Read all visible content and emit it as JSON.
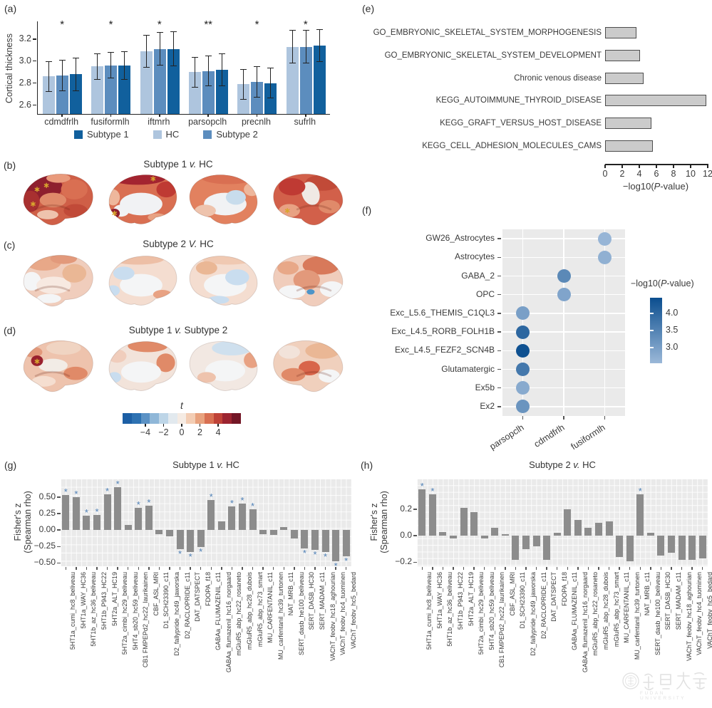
{
  "figure": {
    "panel_labels": {
      "a": "(a)",
      "b": "(b)",
      "c": "(c)",
      "d": "(d)",
      "e": "(e)",
      "f": "(f)",
      "g": "(g)",
      "h": "(h)"
    }
  },
  "panels": {
    "b": {
      "title_pre": "Subtype 1 ",
      "title_vs": "v.",
      "title_post": " HC",
      "palette": [
        "#8e1f2e",
        "#bf3a33",
        "#d96f52",
        "#e8a283",
        "#f1f2f4",
        "#c8dcec"
      ]
    },
    "c": {
      "title_pre": "Subtype 2 ",
      "title_vs": "V.",
      "title_post": " HC",
      "palette": [
        "#e2997b",
        "#f0cdbc",
        "#f4f5f6",
        "#c9ddef",
        "#d8795a"
      ]
    },
    "d": {
      "title_pre": "Subtype 1 ",
      "title_vs": "v.",
      "title_post": " Subtype 2",
      "palette": [
        "#99212e",
        "#e08a68",
        "#f0d0bd",
        "#f4f5f6",
        "#cfe0ee"
      ]
    },
    "t_colorbar": {
      "label": "t",
      "ticks": [
        -4,
        -2,
        0,
        2,
        4
      ],
      "range": [
        -6.5,
        6.5
      ],
      "segments": [
        "#1c5fa5",
        "#2e72b2",
        "#5b92c5",
        "#8fb7d8",
        "#bdd5e7",
        "#e2e9ee",
        "#f5ebe3",
        "#f3cdb4",
        "#e8a27e",
        "#d87052",
        "#bf4237",
        "#9c2430",
        "#731626"
      ]
    },
    "star_color_brain": "#d9a62e"
  },
  "watermark": {
    "seal_chinese": "復旦大學",
    "seal_english": "FUDAN UNIVERSITY"
  },
  "chart_data": [
    {
      "id": "a",
      "type": "bar",
      "ylabel": "Cortical thickness",
      "categories": [
        "cdmdfrlh",
        "fusiformlh",
        "iftmrh",
        "parsopclh",
        "precnlh",
        "sufrlh"
      ],
      "series": [
        {
          "name": "HC",
          "color": "#aec5de",
          "values": [
            2.86,
            2.95,
            3.09,
            2.9,
            2.79,
            3.13
          ],
          "errors": [
            0.14,
            0.12,
            0.15,
            0.14,
            0.14,
            0.15
          ]
        },
        {
          "name": "Subtype 2",
          "color": "#5c8dbe",
          "values": [
            2.87,
            2.96,
            3.11,
            2.91,
            2.81,
            3.13
          ],
          "errors": [
            0.14,
            0.12,
            0.15,
            0.14,
            0.14,
            0.15
          ]
        },
        {
          "name": "Subtype 1",
          "color": "#11609d",
          "values": [
            2.88,
            2.96,
            3.11,
            2.92,
            2.8,
            3.14
          ],
          "errors": [
            0.15,
            0.13,
            0.16,
            0.15,
            0.14,
            0.15
          ]
        }
      ],
      "significance": [
        "*",
        "*",
        "*",
        "**",
        "*",
        "*"
      ],
      "ylim": [
        2.52,
        3.36
      ],
      "yticks": [
        2.6,
        2.8,
        3.0,
        3.2
      ],
      "legend": [
        {
          "label": "Subtype 1",
          "color": "#11609d"
        },
        {
          "label": "HC",
          "color": "#aec5de"
        },
        {
          "label": "Subtype 2",
          "color": "#5c8dbe"
        }
      ]
    },
    {
      "id": "e",
      "type": "bar-horizontal",
      "categories": [
        "GO_EMBRYONIC_SKELETAL_SYSTEM_MORPHOGENESIS",
        "GO_EMBRYONIC_SKELETAL_SYSTEM_DEVELOPMENT",
        "Chronic venous disease",
        "KEGG_AUTOIMMUNE_THYROID_DISEASE",
        "KEGG_GRAFT_VERSUS_HOST_DISEASE",
        "KEGG_CELL_ADHESION_MOLECULES_CAMS"
      ],
      "values": [
        3.7,
        4.1,
        4.5,
        11.8,
        5.4,
        5.6
      ],
      "xlim": [
        0,
        12
      ],
      "xticks": [
        0,
        2,
        4,
        6,
        8,
        10,
        12
      ],
      "xlabel_pre": "−log10(",
      "xlabel_italic": "P",
      "xlabel_post": "-value)",
      "bar_fill": "#cbcbcb",
      "bar_stroke": "#4d4d4d"
    },
    {
      "id": "f",
      "type": "scatter-dot",
      "rows": [
        "GW26_Astrocytes",
        "Astrocytes",
        "GABA_2",
        "OPC",
        "Exc_L5.6_THEMIS_C1QL3",
        "Exc_L4.5_RORB_FOLH1B",
        "Exc_L4.5_FEZF2_SCN4B",
        "Glutamatergic",
        "Ex5b",
        "Ex2"
      ],
      "columns": [
        "parsopclh",
        "cdmdfrlh",
        "fusiformlh"
      ],
      "points": [
        {
          "row": 0,
          "col": 2,
          "value": 2.6
        },
        {
          "row": 1,
          "col": 2,
          "value": 2.7
        },
        {
          "row": 2,
          "col": 1,
          "value": 3.4
        },
        {
          "row": 3,
          "col": 1,
          "value": 2.9
        },
        {
          "row": 4,
          "col": 0,
          "value": 3.0
        },
        {
          "row": 5,
          "col": 0,
          "value": 4.0
        },
        {
          "row": 6,
          "col": 0,
          "value": 4.4
        },
        {
          "row": 7,
          "col": 0,
          "value": 3.7
        },
        {
          "row": 8,
          "col": 0,
          "value": 2.8
        },
        {
          "row": 9,
          "col": 0,
          "value": 3.2
        }
      ],
      "colorbar": {
        "ticks": [
          4.0,
          3.5,
          3.0
        ],
        "vmin": 2.55,
        "vmax": 4.45,
        "color_low": "#9bb8d8",
        "color_high": "#0b4e8f",
        "title_pre": "−log10(",
        "title_italic": "P",
        "title_post": "-value)"
      }
    },
    {
      "id": "g",
      "type": "bar-significance",
      "title_pre": "Subtype 1 ",
      "title_vs": "v.",
      "title_post": " HC",
      "ylabel_line1": "Fisher's z",
      "ylabel_line2": "(Spearman rho)",
      "categories": [
        "5HT1a_cumi_hc8_beliveau",
        "5HT1a_WAY_HC36",
        "5HT1b_az_hc36_beliveau",
        "5HT1b_P943_HC22",
        "5HT2a_ALT_HC19",
        "5HT2a_cimbi_hc29_beliveau",
        "5HT4_sb20_hc59_beliveau",
        "CB1 FMPEPd2_hc22_laurikainen",
        "CBF_ASL_MRI",
        "D1_SCH23390_c11",
        "D2_fallypride_hc49_jaworska",
        "D2_RACLOPRIDE_c11",
        "DAT_DATSPECT",
        "FDOPA_f18",
        "GABAa_FLUMAZENIL_c11",
        "GABAa_flumazenil_hc16_norgaard",
        "mGluR5_abp_hc22_rosaneto",
        "mGluR5_abp_hc28_dubois",
        "mGluR5_abp_hc73_smart",
        "MU_CARFENTANIL_c11",
        "MU_carfentanil_hc39_turtonen",
        "NAT_MRB_c11",
        "SERT_dasb_he100_beliveau",
        "SERT_DASB_HC30",
        "SERT_MADAM_c11",
        "VAChT_feobv_hc18_aghourian",
        "VAChT_feobv_hc4_tuominen",
        "VAChT_feobv_hc5_bedard"
      ],
      "values": [
        0.53,
        0.5,
        0.22,
        0.23,
        0.54,
        0.65,
        0.08,
        0.34,
        0.37,
        -0.06,
        -0.1,
        -0.29,
        -0.33,
        -0.26,
        0.46,
        0.13,
        0.36,
        0.4,
        0.31,
        -0.06,
        -0.07,
        0.04,
        -0.13,
        -0.28,
        -0.3,
        -0.33,
        -0.47,
        -0.4
      ],
      "significant": [
        1,
        1,
        1,
        1,
        1,
        1,
        0,
        1,
        1,
        0,
        0,
        1,
        1,
        1,
        1,
        0,
        1,
        1,
        1,
        0,
        0,
        0,
        0,
        1,
        1,
        1,
        1,
        1
      ],
      "yticks": [
        0.5,
        0.25,
        0.0,
        -0.25,
        -0.5
      ],
      "tick_decimals": 2,
      "ylim": [
        -0.55,
        0.78
      ],
      "grid_step": 0.125,
      "bar_color": "#8c8c8c",
      "star_color": "#4d7fb5"
    },
    {
      "id": "h",
      "type": "bar-significance",
      "title_pre": "Subtype 2 ",
      "title_vs": "v.",
      "title_post": " HC",
      "ylabel_line1": "Fisher's z",
      "ylabel_line2": "(Spearman rho)",
      "categories": [
        "5HT1a_cumi_hc8_beliveau",
        "5HT1a_WAY_HC36",
        "5HT1b_az_hc36_beliveau",
        "5HT1b_P943_HC22",
        "5HT2a_ALT_HC19",
        "5HT2a_cimbi_hc29_beliveau",
        "5HT4_sb20_hc59_beliveau",
        "CB1 FMPEPd2_hc22_laurikainen",
        "CBF_ASL_MRI",
        "D1_SCH23390_c11",
        "D2_fallypride_hc49_jaworska",
        "D2_RACLOPRIDE_c11",
        "DAT_DATSPECT",
        "FDOPA_f18",
        "GABAa_FLUMAZENIL_c11",
        "GABAa_flumazenil_hc16_norgaard",
        "mGluR5_abp_hc22_rosaneto",
        "mGluR5_abp_hc28_dubois",
        "mGluR5_abp_hc73_smart",
        "MU_CARFENTANIL_c11",
        "MU_carfentanil_hc39_turtonen",
        "NAT_MRB_c11",
        "SERT_dasb_he100_beliveau",
        "SERT_DASB_HC30",
        "SERT_MADAM_c11",
        "VAChT_feobv_hc18_aghourian",
        "VAChT_feobv_hc4_tuominen",
        "VAChT_feobv_hc5_bedard"
      ],
      "values": [
        0.35,
        0.31,
        0.03,
        -0.02,
        0.21,
        0.18,
        -0.02,
        0.06,
        0.01,
        -0.18,
        -0.1,
        -0.08,
        -0.18,
        0.02,
        0.2,
        0.12,
        0.06,
        0.1,
        0.11,
        -0.16,
        -0.19,
        0.31,
        0.02,
        -0.15,
        -0.13,
        -0.18,
        -0.18,
        -0.17
      ],
      "significant": [
        1,
        1,
        0,
        0,
        0,
        0,
        0,
        0,
        0,
        0,
        0,
        0,
        0,
        0,
        0,
        0,
        0,
        0,
        0,
        0,
        0,
        1,
        0,
        0,
        0,
        0,
        0,
        0
      ],
      "yticks": [
        0.2,
        0.0,
        -0.2
      ],
      "tick_decimals": 1,
      "ylim": [
        -0.23,
        0.43
      ],
      "grid_step": 0.05,
      "bar_color": "#8c8c8c",
      "star_color": "#4d7fb5"
    }
  ]
}
